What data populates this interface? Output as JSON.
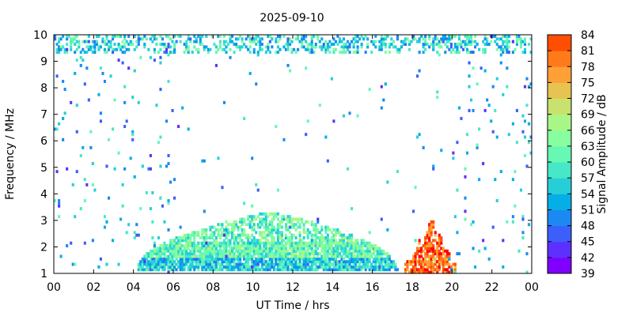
{
  "chart_data": {
    "type": "heatmap",
    "title": "2025-09-10",
    "xlabel": "UT Time / hrs",
    "ylabel": "Frequency / MHz",
    "colorbar_label": "Signal Amplitude / dB",
    "xlim": [
      0,
      24
    ],
    "ylim": [
      1,
      10
    ],
    "x_ticks": [
      "00",
      "02",
      "04",
      "06",
      "08",
      "10",
      "12",
      "14",
      "16",
      "18",
      "20",
      "22",
      "00"
    ],
    "y_ticks": [
      "1",
      "2",
      "3",
      "4",
      "5",
      "6",
      "7",
      "8",
      "9",
      "10"
    ],
    "color_levels": [
      39,
      42,
      45,
      48,
      51,
      54,
      57,
      60,
      63,
      66,
      69,
      72,
      75,
      78,
      81,
      84
    ],
    "color_scale": [
      "#7f00ff",
      "#5e30fe",
      "#3c5ff9",
      "#1b89f1",
      "#06aee6",
      "#26cfd8",
      "#47e8c7",
      "#67f8b4",
      "#87fe9f",
      "#a8f786",
      "#c8e26d",
      "#e7c352",
      "#ffa037",
      "#ff7a1b",
      "#ff4e02",
      "#ff0000"
    ],
    "regions": [
      {
        "name": "daytime-layer",
        "x_start": 4.1,
        "x_end": 17.2,
        "f_low": 1.1,
        "f_peak": 3.3,
        "peak_x": 10.8,
        "amplitude": 60
      },
      {
        "name": "evening-burst",
        "x_start": 17.6,
        "x_end": 20.2,
        "f_low": 1.0,
        "f_peak": 3.5,
        "peak_x": 18.9,
        "amplitude": 78
      },
      {
        "name": "upper-band",
        "x_start": 0,
        "x_end": 24,
        "f_low": 9.3,
        "f_peak": 9.9,
        "amplitude": 55
      }
    ],
    "grid": false,
    "legend": "colorbar-right"
  }
}
